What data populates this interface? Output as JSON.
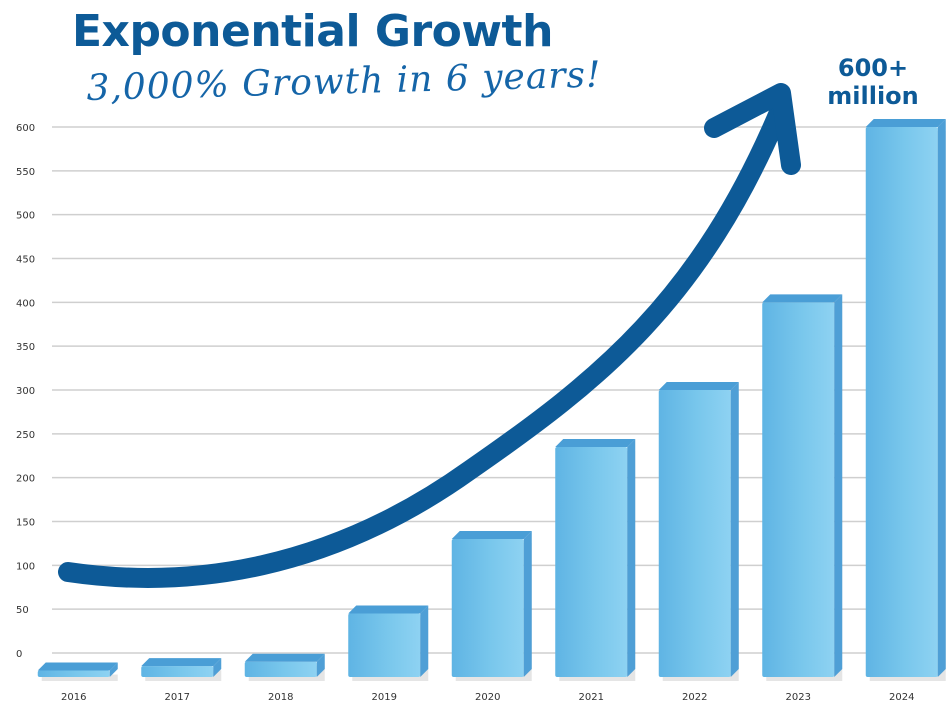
{
  "title": "Exponential Growth",
  "subtitle": "3,000% Growth in 6 years!",
  "callout": {
    "line1": "600+",
    "line2": "million"
  },
  "colors": {
    "accent": "#0d5a97",
    "bar_front": "#79c7ec",
    "bar_top": "#4a9ed6",
    "bar_side": "#4f9fd6",
    "grid": "#cfcfcf"
  },
  "chart_data": {
    "type": "bar",
    "categories": [
      "2016",
      "2017",
      "2018",
      "2019",
      "2020",
      "2021",
      "2022",
      "2023",
      "2024"
    ],
    "values": [
      -20,
      -15,
      -10,
      45,
      130,
      235,
      300,
      400,
      600
    ],
    "yticks": [
      0,
      50,
      100,
      150,
      200,
      250,
      300,
      350,
      400,
      450,
      500,
      550,
      600
    ],
    "ylim": [
      -25,
      610
    ],
    "grid": true,
    "xlabel": "",
    "ylabel": "",
    "annotation": "growth arrow"
  }
}
